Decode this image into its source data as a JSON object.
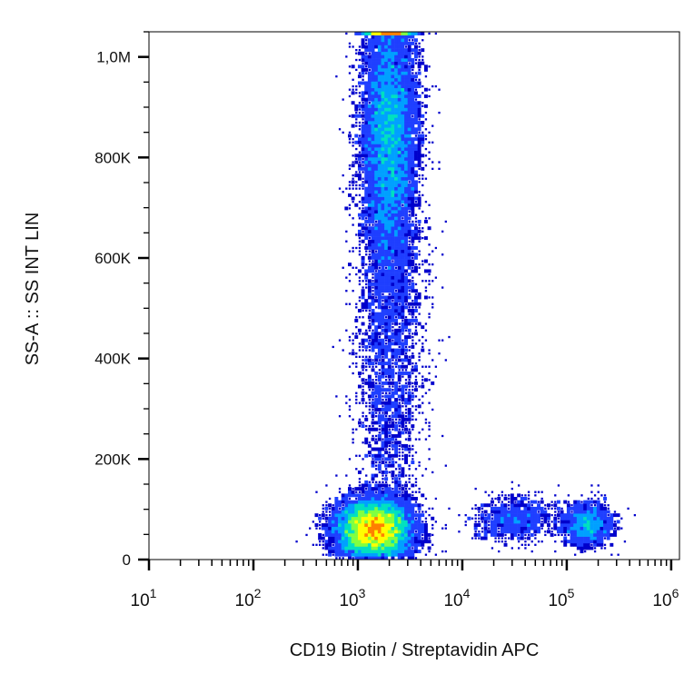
{
  "chart_data": {
    "type": "scatter",
    "subtype": "flow-cytometry density dot plot",
    "xlabel": "CD19 Biotin / Streptavidin APC",
    "ylabel": "SS-A :: SS INT LIN",
    "x_scale": "log",
    "x_range": [
      10,
      1200000
    ],
    "y_scale": "linear",
    "y_range": [
      0,
      1050000
    ],
    "x_major_ticks": [
      {
        "base": "10",
        "exp": "1",
        "value": 10
      },
      {
        "base": "10",
        "exp": "2",
        "value": 100
      },
      {
        "base": "10",
        "exp": "3",
        "value": 1000
      },
      {
        "base": "10",
        "exp": "4",
        "value": 10000
      },
      {
        "base": "10",
        "exp": "5",
        "value": 100000
      },
      {
        "base": "10",
        "exp": "6",
        "value": 1000000
      }
    ],
    "y_major_ticks": [
      {
        "label": "0",
        "value": 0
      },
      {
        "label": "200K",
        "value": 200000
      },
      {
        "label": "400K",
        "value": 400000
      },
      {
        "label": "600K",
        "value": 600000
      },
      {
        "label": "800K",
        "value": 800000
      },
      {
        "label": "1,0M",
        "value": 1000000
      }
    ],
    "density_colors": [
      "#0000cc",
      "#1f3fff",
      "#00a0ff",
      "#00e0c0",
      "#80ff40",
      "#ffff00",
      "#ff8000"
    ],
    "populations": [
      {
        "x_log10_center": 3.15,
        "x_log10_sd": 0.18,
        "y_center": 60000,
        "y_sd": 30000,
        "relative_density": 1.0
      },
      {
        "x_log10_center": 3.3,
        "x_log10_sd": 0.13,
        "y_center": 850000,
        "y_sd": 140000,
        "relative_density": 0.85
      },
      {
        "x_log10_center": 3.3,
        "x_log10_sd": 0.16,
        "y_center": 420000,
        "y_sd": 200000,
        "relative_density": 0.25
      },
      {
        "x_log10_center": 4.5,
        "x_log10_sd": 0.2,
        "y_center": 80000,
        "y_sd": 22000,
        "relative_density": 0.08
      },
      {
        "x_log10_center": 5.2,
        "x_log10_sd": 0.12,
        "y_center": 70000,
        "y_sd": 22000,
        "relative_density": 0.12
      }
    ]
  }
}
